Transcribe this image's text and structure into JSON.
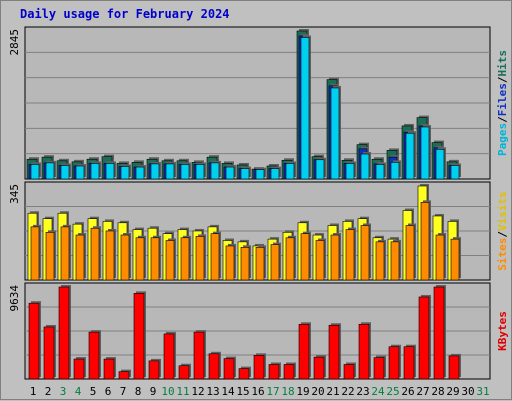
{
  "chart_data": {
    "title": "Daily usage for February 2024",
    "type": "bar",
    "grid": true,
    "categories": [
      "1",
      "2",
      "3",
      "4",
      "5",
      "6",
      "7",
      "8",
      "9",
      "10",
      "11",
      "12",
      "13",
      "14",
      "15",
      "16",
      "17",
      "18",
      "19",
      "20",
      "21",
      "22",
      "23",
      "24",
      "25",
      "26",
      "27",
      "28",
      "29",
      "30",
      "31"
    ],
    "weekend_days": [
      "3",
      "4",
      "10",
      "11",
      "17",
      "18",
      "24",
      "25",
      "31"
    ],
    "colors": {
      "background": "#c0c0c0",
      "plot": "#b8b8b8",
      "grid": "#808080",
      "title": "#0000cc",
      "day_normal": "#000000",
      "day_weekend": "#007f3f",
      "hits": "#1a6e58",
      "files": "#1030c0",
      "pages": "#00d0f0",
      "visits": "#ffff20",
      "sites": "#ff8c00",
      "kbytes": "#ff0000",
      "pages_label": "#00b4d8",
      "files_label": "#1030c0",
      "hits_label": "#1a6e58",
      "visits_label": "#e0c000",
      "sites_label": "#ff8c00",
      "kbytes_label": "#e00000"
    },
    "panels": [
      {
        "id": "hits_files_pages",
        "ymax": 2845,
        "max_label": "2845",
        "legend": [
          "Pages",
          "/",
          "Files",
          "/",
          "Hits"
        ],
        "series": [
          {
            "name": "Hits",
            "values": [
              380,
              420,
              350,
              330,
              380,
              430,
              300,
              320,
              380,
              350,
              350,
              320,
              420,
              300,
              270,
              190,
              250,
              360,
              2845,
              430,
              1910,
              360,
              660,
              380,
              550,
              1020,
              1180,
              700,
              330,
              null,
              null
            ]
          },
          {
            "name": "Files",
            "values": [
              280,
              310,
              260,
              250,
              300,
              300,
              240,
              230,
              290,
              290,
              280,
              280,
              310,
              230,
              200,
              180,
              200,
              300,
              2750,
              370,
              1790,
              300,
              580,
              290,
              420,
              900,
              1020,
              600,
              260,
              null,
              null
            ]
          },
          {
            "name": "Pages",
            "values": [
              280,
              310,
              260,
              250,
              300,
              300,
              240,
              230,
              290,
              290,
              280,
              280,
              310,
              230,
              200,
              180,
              200,
              300,
              2720,
              370,
              1750,
              300,
              480,
              280,
              320,
              880,
              1000,
              570,
              260,
              null,
              null
            ]
          }
        ]
      },
      {
        "id": "visits_sites",
        "ymax": 345,
        "max_label": "345",
        "legend": [
          "Sites",
          "/",
          "Visits"
        ],
        "series": [
          {
            "name": "Visits",
            "values": [
              245,
              225,
              245,
              205,
              225,
              215,
              210,
              185,
              190,
              170,
              185,
              180,
              195,
              145,
              140,
              125,
              150,
              175,
              210,
              165,
              200,
              215,
              225,
              155,
              150,
              255,
              345,
              235,
              215,
              null,
              null
            ]
          },
          {
            "name": "Sites",
            "values": [
              195,
              175,
              195,
              165,
              190,
              180,
              165,
              155,
              155,
              145,
              155,
              160,
              170,
              125,
              120,
              120,
              130,
              155,
              170,
              145,
              165,
              185,
              200,
              140,
              140,
              200,
              285,
              165,
              150,
              null,
              null
            ]
          }
        ]
      },
      {
        "id": "kbytes",
        "ymax": 9634,
        "max_label": "9634",
        "legend": [
          "KBytes"
        ],
        "series": [
          {
            "name": "KBytes",
            "values": [
              7940,
              5450,
              9634,
              2090,
              4910,
              2090,
              770,
              8970,
              1900,
              4720,
              1390,
              4910,
              2640,
              2140,
              1090,
              2480,
              1520,
              1520,
              5730,
              2290,
              5630,
              1520,
              5730,
              2240,
              3380,
              3380,
              8590,
              9634,
              2420,
              null,
              null
            ]
          }
        ]
      }
    ]
  }
}
